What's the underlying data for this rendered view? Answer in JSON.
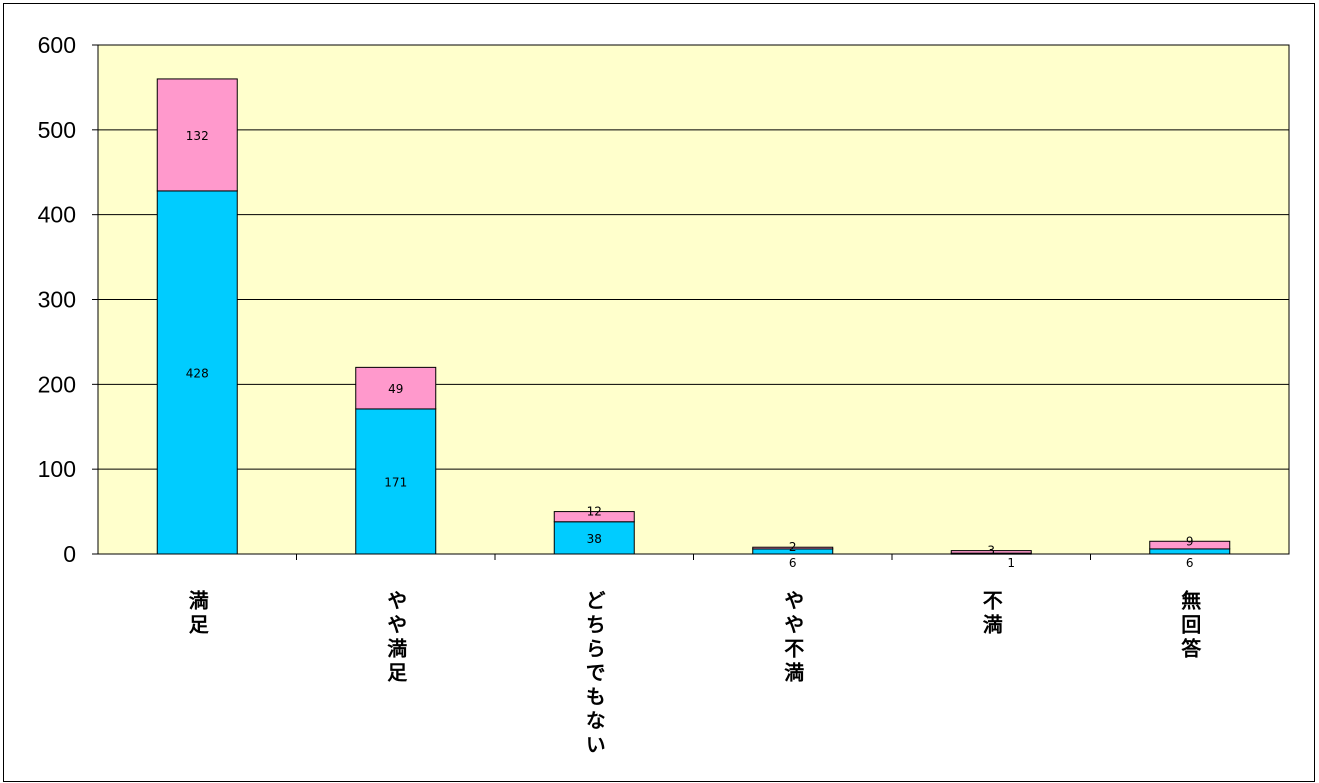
{
  "chart_data": {
    "type": "bar",
    "stacked": true,
    "categories": [
      "満足",
      "やや満足",
      "どちらでもない",
      "やや不満",
      "不満",
      "無回答"
    ],
    "series": [
      {
        "values": [
          428,
          171,
          38,
          6,
          1,
          6
        ],
        "color": "#00CCFF"
      },
      {
        "values": [
          132,
          49,
          12,
          2,
          3,
          9
        ],
        "color": "#FF99CC"
      }
    ],
    "ylim": [
      0,
      600
    ],
    "yticks": [
      "0",
      "100",
      "200",
      "300",
      "400",
      "500",
      "600"
    ],
    "grid": true,
    "plot_background": "#FFFFCC",
    "xlabel": "",
    "ylabel": ""
  }
}
